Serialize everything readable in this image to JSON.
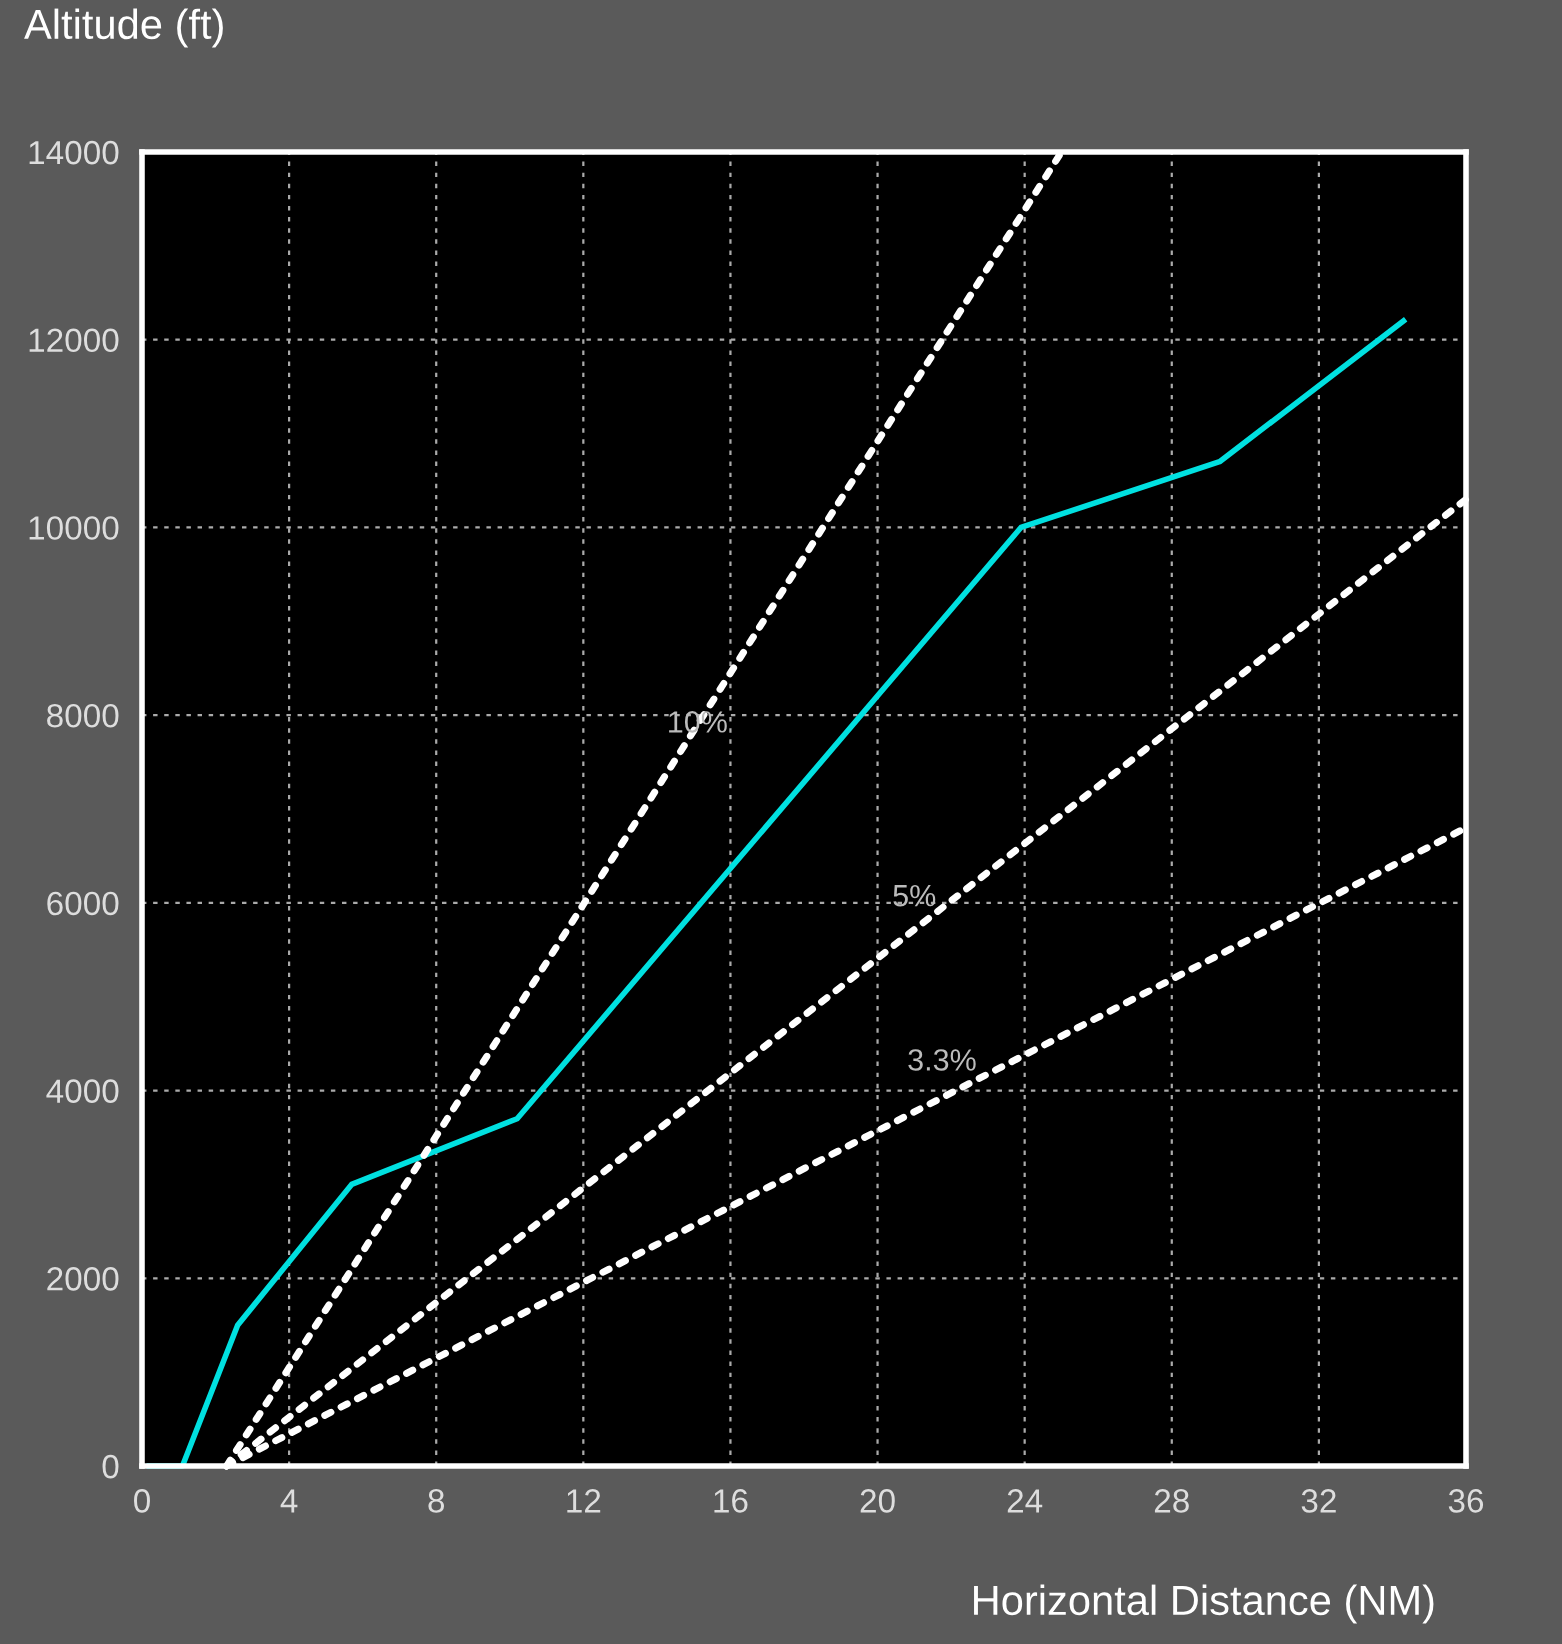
{
  "chart_data": {
    "type": "line",
    "xlabel": "Horizontal Distance (NM)",
    "ylabel": "Altitude (ft)",
    "xlim": [
      0,
      36
    ],
    "ylim": [
      0,
      14000
    ],
    "xticks": [
      0,
      4,
      8,
      12,
      16,
      20,
      24,
      28,
      32,
      36
    ],
    "yticks": [
      0,
      2000,
      4000,
      6000,
      8000,
      10000,
      12000,
      14000
    ],
    "grid": true,
    "marker": "none",
    "series": [
      {
        "color": "#00e0e0",
        "line_style": "solid",
        "x": [
          0.2,
          1.1,
          2.6,
          5.7,
          10.2,
          23.9,
          29.3,
          34.3
        ],
        "values": [
          0,
          0,
          1500,
          3000,
          3700,
          10000,
          10700,
          12200
        ]
      },
      {
        "color": "#ffffff",
        "line_style": "dotted",
        "x": [
          2.3,
          25.0
        ],
        "values": [
          0,
          14000
        ]
      },
      {
        "color": "#ffffff",
        "line_style": "dotted",
        "x": [
          2.3,
          36
        ],
        "values": [
          0,
          10300
        ]
      },
      {
        "color": "#ffffff",
        "line_style": "dotted",
        "x": [
          2.3,
          36
        ],
        "values": [
          0,
          6800
        ]
      }
    ],
    "annotations": [
      {
        "text": "10%",
        "x": 15.1,
        "y": 7900
      },
      {
        "text": "5%",
        "x": 21.9,
        "y": 5990
      },
      {
        "text": "3.3%",
        "x": 23.0,
        "y": 4180
      }
    ]
  }
}
